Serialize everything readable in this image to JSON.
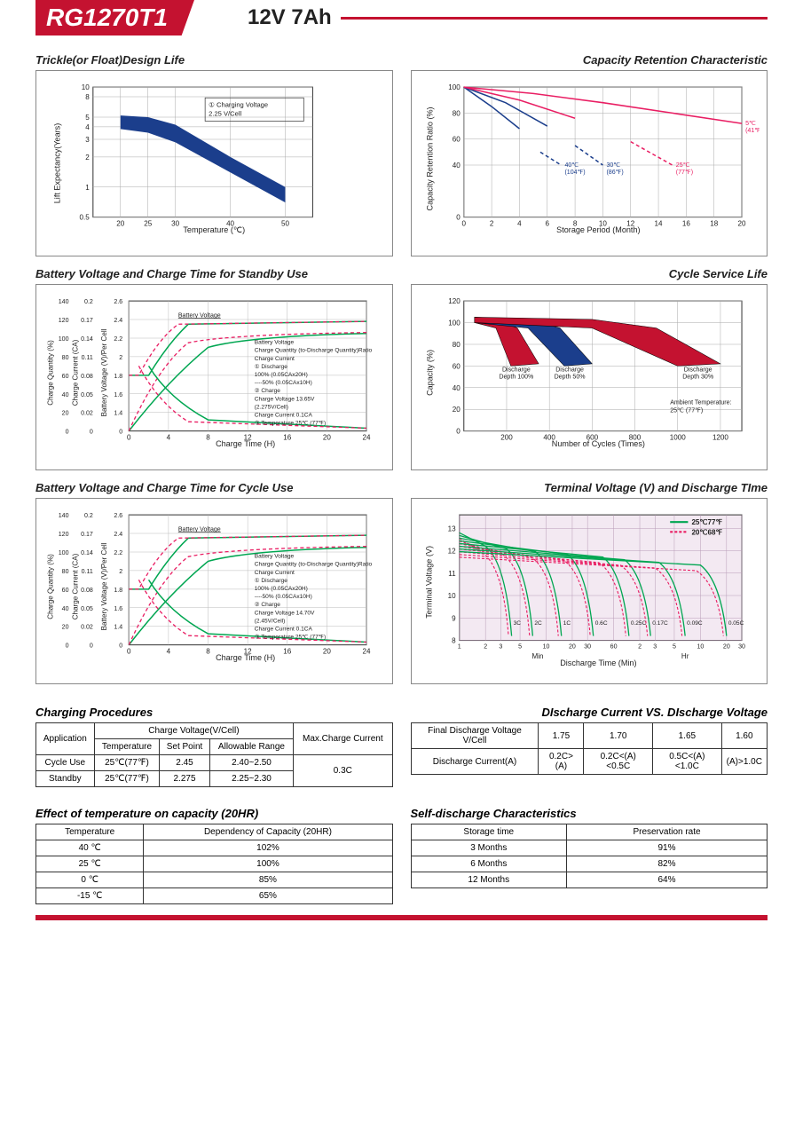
{
  "header": {
    "model": "RG1270T1",
    "spec": "12V  7Ah"
  },
  "colors": {
    "red": "#c41230",
    "blue": "#1b3e8c",
    "navy": "#1b3e8c",
    "pink": "#e91e63",
    "green": "#00a651",
    "grid": "#999",
    "border": "#888",
    "text": "#222"
  },
  "chart1": {
    "title": "Trickle(or Float)Design Life",
    "xlabel": "Temperature (℃)",
    "ylabel": "Lift  Expectancy(Years)",
    "xticks": [
      20,
      25,
      30,
      40,
      50
    ],
    "yticks": [
      0.5,
      1,
      2,
      3,
      4,
      5,
      8,
      10
    ],
    "note": "① Charging Voltage\n   2.25 V/Cell",
    "band_upper": [
      [
        20,
        5.2
      ],
      [
        25,
        5.0
      ],
      [
        30,
        4.2
      ],
      [
        40,
        2.0
      ],
      [
        50,
        1.0
      ]
    ],
    "band_lower": [
      [
        20,
        3.8
      ],
      [
        25,
        3.5
      ],
      [
        30,
        2.8
      ],
      [
        40,
        1.4
      ],
      [
        50,
        0.7
      ]
    ],
    "band_color": "#1b3e8c"
  },
  "chart2": {
    "title": "Capacity  Retention  Characteristic",
    "xlabel": "Storage Period (Month)",
    "ylabel": "Capacity Retention Ratio (%)",
    "xticks": [
      0,
      2,
      4,
      6,
      8,
      10,
      12,
      14,
      16,
      18,
      20
    ],
    "yticks": [
      0,
      40,
      60,
      80,
      100
    ],
    "curves": [
      {
        "label": "40℃\n(104℉)",
        "color": "#1b3e8c",
        "pts": [
          [
            0,
            100
          ],
          [
            2,
            85
          ],
          [
            4,
            68
          ],
          [
            5.5,
            50
          ],
          [
            7,
            40
          ]
        ]
      },
      {
        "label": "30℃\n(86℉)",
        "color": "#1b3e8c",
        "pts": [
          [
            0,
            100
          ],
          [
            3,
            88
          ],
          [
            6,
            70
          ],
          [
            8,
            55
          ],
          [
            10,
            40
          ]
        ]
      },
      {
        "label": "25℃\n(77℉)",
        "color": "#e91e63",
        "pts": [
          [
            0,
            100
          ],
          [
            4,
            90
          ],
          [
            8,
            76
          ],
          [
            12,
            58
          ],
          [
            15,
            40
          ]
        ]
      },
      {
        "label": "5℃\n(41℉)",
        "color": "#e91e63",
        "pts": [
          [
            0,
            100
          ],
          [
            5,
            95
          ],
          [
            10,
            88
          ],
          [
            15,
            80
          ],
          [
            20,
            72
          ]
        ]
      }
    ]
  },
  "chart3": {
    "title": "Battery Voltage and Charge Time for Standby Use",
    "xlabel": "Charge Time (H)",
    "y1": "Charge Quantity (%)",
    "y2": "Charge Current (CA)",
    "y3": "Battery Voltage (V)/Per Cell",
    "xticks": [
      0,
      4,
      8,
      12,
      16,
      20,
      24
    ],
    "y1ticks": [
      0,
      20,
      40,
      60,
      80,
      100,
      120,
      140
    ],
    "y2ticks": [
      0,
      0.02,
      0.05,
      0.08,
      0.11,
      0.14,
      0.17,
      0.2
    ],
    "y3ticks": [
      0,
      1.4,
      1.6,
      1.8,
      2.0,
      2.2,
      2.4,
      2.6
    ],
    "notes": [
      "Battery Voltage",
      "Charge Quantity (to-Discharge Quantity)Ratio",
      "Charge Current",
      "① Discharge",
      "   100% (0.05CAx20H)",
      "   ----50% (0.05CAx10H)",
      "② Charge",
      "   Charge Voltage 13.65V",
      "   (2.275V/Cell)",
      "   Charge Current 0.1CA",
      "③ Temperature 25℃ (77℉)"
    ]
  },
  "chart4": {
    "title": "Cycle Service Life",
    "xlabel": "Number of Cycles (Times)",
    "ylabel": "Capacity (%)",
    "xticks": [
      200,
      400,
      600,
      800,
      1000,
      1200
    ],
    "yticks": [
      0,
      20,
      40,
      60,
      80,
      100,
      120
    ],
    "bands": [
      {
        "label": "Discharge\nDepth 100%",
        "color": "#c41230",
        "upper": [
          [
            50,
            105
          ],
          [
            150,
            103
          ],
          [
            250,
            95
          ],
          [
            350,
            62
          ]
        ],
        "lower": [
          [
            50,
            100
          ],
          [
            150,
            95
          ],
          [
            220,
            60
          ]
        ]
      },
      {
        "label": "Discharge\nDepth 50%",
        "color": "#1b3e8c",
        "upper": [
          [
            50,
            105
          ],
          [
            300,
            103
          ],
          [
            450,
            95
          ],
          [
            600,
            62
          ]
        ],
        "lower": [
          [
            50,
            100
          ],
          [
            300,
            95
          ],
          [
            470,
            60
          ]
        ]
      },
      {
        "label": "Discharge\nDepth 30%",
        "color": "#c41230",
        "upper": [
          [
            50,
            105
          ],
          [
            600,
            103
          ],
          [
            900,
            95
          ],
          [
            1200,
            62
          ]
        ],
        "lower": [
          [
            50,
            100
          ],
          [
            600,
            95
          ],
          [
            1000,
            60
          ]
        ]
      }
    ],
    "ambient": "Ambient Temperature:\n25℃ (77℉)"
  },
  "chart5": {
    "title": "Battery Voltage and Charge Time for Cycle Use",
    "xlabel": "Charge Time (H)",
    "notes": [
      "Battery Voltage",
      "Charge Quantity (to-Discharge Quantity)Ratio",
      "Charge Current",
      "① Discharge",
      "   100% (0.05CAx20H)",
      "   ----50% (0.05CAx10H)",
      "② Charge",
      "   Charge Voltage 14.70V",
      "   (2.45V/Cell)",
      "   Charge Current 0.1CA",
      "③ Temperature 25℃ (77℉)"
    ]
  },
  "chart6": {
    "title": "Terminal Voltage (V) and Discharge TIme",
    "xlabel": "Discharge Time (Min)",
    "ylabel": "Terminal Voltage (V)",
    "yticks": [
      0,
      8,
      9,
      10,
      11,
      12,
      13
    ],
    "xticks_min": [
      1,
      2,
      3,
      5,
      10,
      20,
      30,
      60
    ],
    "xticks_hr": [
      2,
      3,
      5,
      10,
      20,
      30
    ],
    "legend": [
      {
        "label": "25℃77℉",
        "color": "#00a651"
      },
      {
        "label": "20℃68℉",
        "color": "#e91e63"
      }
    ],
    "clabels": [
      "3C",
      "2C",
      "1C",
      "0.6C",
      "0.25C",
      "0.17C",
      "0.09C",
      "0.05C"
    ]
  },
  "table1": {
    "title": "Charging Procedures",
    "headers": [
      "Application",
      "Charge Voltage(V/Cell)",
      "Max.Charge Current"
    ],
    "sub": [
      "Temperature",
      "Set Point",
      "Allowable Range"
    ],
    "rows": [
      [
        "Cycle Use",
        "25℃(77℉)",
        "2.45",
        "2.40~2.50",
        "0.3C"
      ],
      [
        "Standby",
        "25℃(77℉)",
        "2.275",
        "2.25~2.30",
        ""
      ]
    ]
  },
  "table2": {
    "title": "DIscharge Current VS. DIscharge Voltage",
    "rows": [
      [
        "Final Discharge Voltage V/Cell",
        "1.75",
        "1.70",
        "1.65",
        "1.60"
      ],
      [
        "Discharge Current(A)",
        "0.2C>(A)",
        "0.2C<(A)<0.5C",
        "0.5C<(A)<1.0C",
        "(A)>1.0C"
      ]
    ]
  },
  "table3": {
    "title": "Effect of temperature on capacity (20HR)",
    "headers": [
      "Temperature",
      "Dependency of Capacity (20HR)"
    ],
    "rows": [
      [
        "40 ℃",
        "102%"
      ],
      [
        "25 ℃",
        "100%"
      ],
      [
        "0 ℃",
        "85%"
      ],
      [
        "-15 ℃",
        "65%"
      ]
    ]
  },
  "table4": {
    "title": "Self-discharge Characteristics",
    "headers": [
      "Storage time",
      "Preservation rate"
    ],
    "rows": [
      [
        "3 Months",
        "91%"
      ],
      [
        "6 Months",
        "82%"
      ],
      [
        "12 Months",
        "64%"
      ]
    ]
  }
}
